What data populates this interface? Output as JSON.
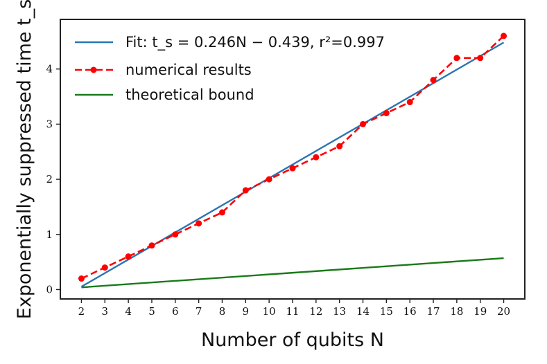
{
  "chart_data": {
    "type": "line",
    "xlabel": "Number of qubits N",
    "ylabel": "Exponentially suppressed time t_s",
    "xlim": [
      1.1,
      20.9
    ],
    "ylim": [
      -0.17,
      4.9
    ],
    "xticks": [
      2,
      3,
      4,
      5,
      6,
      7,
      8,
      9,
      10,
      11,
      12,
      13,
      14,
      15,
      16,
      17,
      18,
      19,
      20
    ],
    "yticks": [
      0,
      1,
      2,
      3,
      4
    ],
    "grid": false,
    "legend_position": "top-left",
    "series": [
      {
        "name": "Fit: t_s = 0.246N − 0.439, r²=0.997",
        "style": "solid",
        "color": "#2b74b3",
        "x": [
          2,
          20
        ],
        "y": [
          0.053,
          4.481
        ]
      },
      {
        "name": "numerical results",
        "style": "dashed-markers",
        "color": "#ff0000",
        "x": [
          2,
          3,
          4,
          5,
          6,
          7,
          8,
          9,
          10,
          11,
          12,
          13,
          14,
          15,
          16,
          17,
          18,
          19,
          20
        ],
        "y": [
          0.2,
          0.4,
          0.6,
          0.8,
          1.0,
          1.2,
          1.4,
          1.8,
          2.0,
          2.2,
          2.4,
          2.6,
          3.0,
          3.2,
          3.4,
          3.8,
          4.2,
          4.2,
          4.6
        ]
      },
      {
        "name": "theoretical bound",
        "style": "solid",
        "color": "#1a7a1a",
        "x": [
          2,
          20
        ],
        "y": [
          0.04,
          0.57
        ]
      }
    ]
  }
}
